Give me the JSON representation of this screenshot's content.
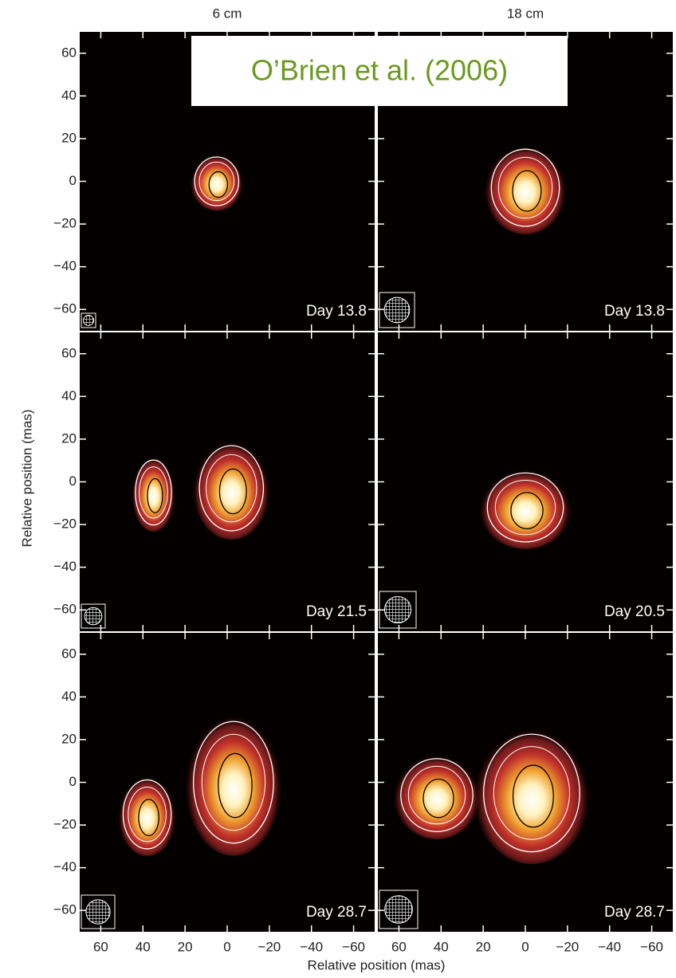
{
  "annotation": "O’Brien et al. (2006)",
  "columns": [
    "6 cm",
    "18 cm"
  ],
  "panels": [
    [
      {
        "label": "Day 13.8"
      },
      {
        "label": "Day 13.8"
      }
    ],
    [
      {
        "label": "Day 21.5"
      },
      {
        "label": "Day 20.5"
      }
    ],
    [
      {
        "label": "Day 28.7"
      },
      {
        "label": "Day 28.7"
      }
    ]
  ],
  "axes": {
    "y_label": "Relative position (mas)",
    "x_label": "Relative position (mas)",
    "ticks": [
      {
        "value": 60,
        "label": "60"
      },
      {
        "value": 40,
        "label": "40"
      },
      {
        "value": 20,
        "label": "20"
      },
      0,
      {
        "value": -20,
        "label": "−20"
      },
      {
        "value": -40,
        "label": "−40"
      },
      {
        "value": -60,
        "label": "−60"
      }
    ]
  }
}
